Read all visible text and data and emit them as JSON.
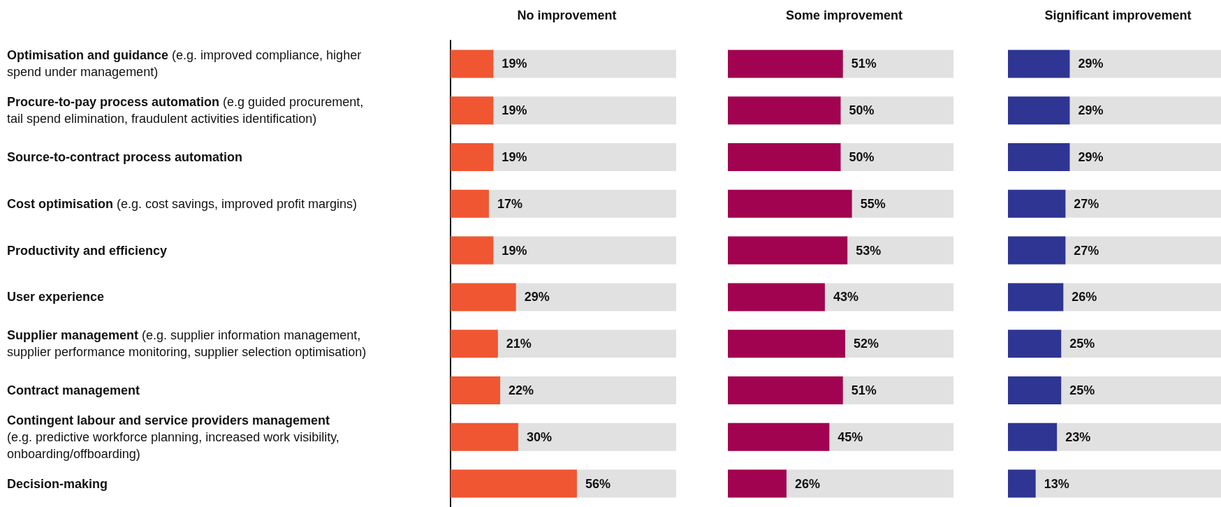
{
  "chart_data": [
    {
      "type": "bar",
      "orientation": "horizontal",
      "tick_labels": "y",
      "xlim": [
        0,
        100
      ],
      "title": "No improvement",
      "color": "#f05632",
      "categories": [
        "Optimisation and guidance (e.g. improved compliance, higher\nspend under management)",
        "Procure-to-pay process automation (e.g guided procurement,\ntail spend elimination, fraudulent activities identification)",
        "Source-to-contract process automation",
        "Cost optimisation (e.g. cost savings, improved profit margins)",
        "Productivity and efficiency",
        "User experience",
        "Supplier management (e.g. supplier information management,\nsupplier performance monitoring, supplier selection optimisation)",
        "Contract management",
        "Contingent labour and service providers management\n(e.g. predictive workforce planning, increased work visibility,\nonboarding/offboarding)",
        "Decision-making"
      ],
      "values": [
        19,
        19,
        19,
        17,
        19,
        29,
        21,
        22,
        30,
        56
      ],
      "value_labels": [
        "19%",
        "19%",
        "19%",
        "17%",
        "19%",
        "29%",
        "21%",
        "22%",
        "30%",
        "56%"
      ]
    },
    {
      "type": "bar",
      "orientation": "horizontal",
      "tick_labels": false,
      "xlim": [
        0,
        100
      ],
      "title": "Some improvement",
      "color": "#a10350",
      "categories": [
        null,
        null,
        null,
        null,
        null,
        null,
        null,
        null,
        null,
        null
      ],
      "values": [
        51,
        50,
        50,
        55,
        53,
        43,
        52,
        51,
        45,
        26
      ],
      "value_labels": [
        "51%",
        "50%",
        "50%",
        "55%",
        "53%",
        "43%",
        "52%",
        "51%",
        "45%",
        "26%"
      ]
    },
    {
      "type": "bar",
      "orientation": "horizontal",
      "tick_labels": false,
      "xlim": [
        0,
        100
      ],
      "title": "Significant improvement",
      "color": "#2e3593",
      "categories": [
        null,
        null,
        null,
        null,
        null,
        null,
        null,
        null,
        null,
        null
      ],
      "values": [
        29,
        29,
        29,
        27,
        27,
        26,
        25,
        25,
        23,
        13
      ],
      "value_labels": [
        "29%",
        "29%",
        "29%",
        "27%",
        "27%",
        "26%",
        "25%",
        "25%",
        "23%",
        "13%"
      ]
    }
  ]
}
